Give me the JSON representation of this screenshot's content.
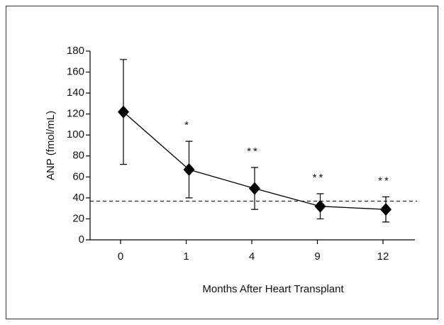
{
  "chart_data": {
    "type": "line",
    "categories": [
      "0",
      "1",
      "4",
      "9",
      "12"
    ],
    "values": [
      122,
      67,
      49,
      32,
      29
    ],
    "errors": [
      50,
      27,
      20,
      12,
      12
    ],
    "significance": [
      null,
      "*",
      "**",
      "**",
      "**"
    ],
    "reference_line": 37,
    "color": "#000000",
    "xlabel": "Months After Heart Transplant",
    "ylabel": "ANP (fmol/mL)",
    "ylim": [
      0,
      180
    ],
    "yticks": [
      0,
      20,
      40,
      60,
      80,
      100,
      120,
      140,
      160,
      180
    ]
  }
}
